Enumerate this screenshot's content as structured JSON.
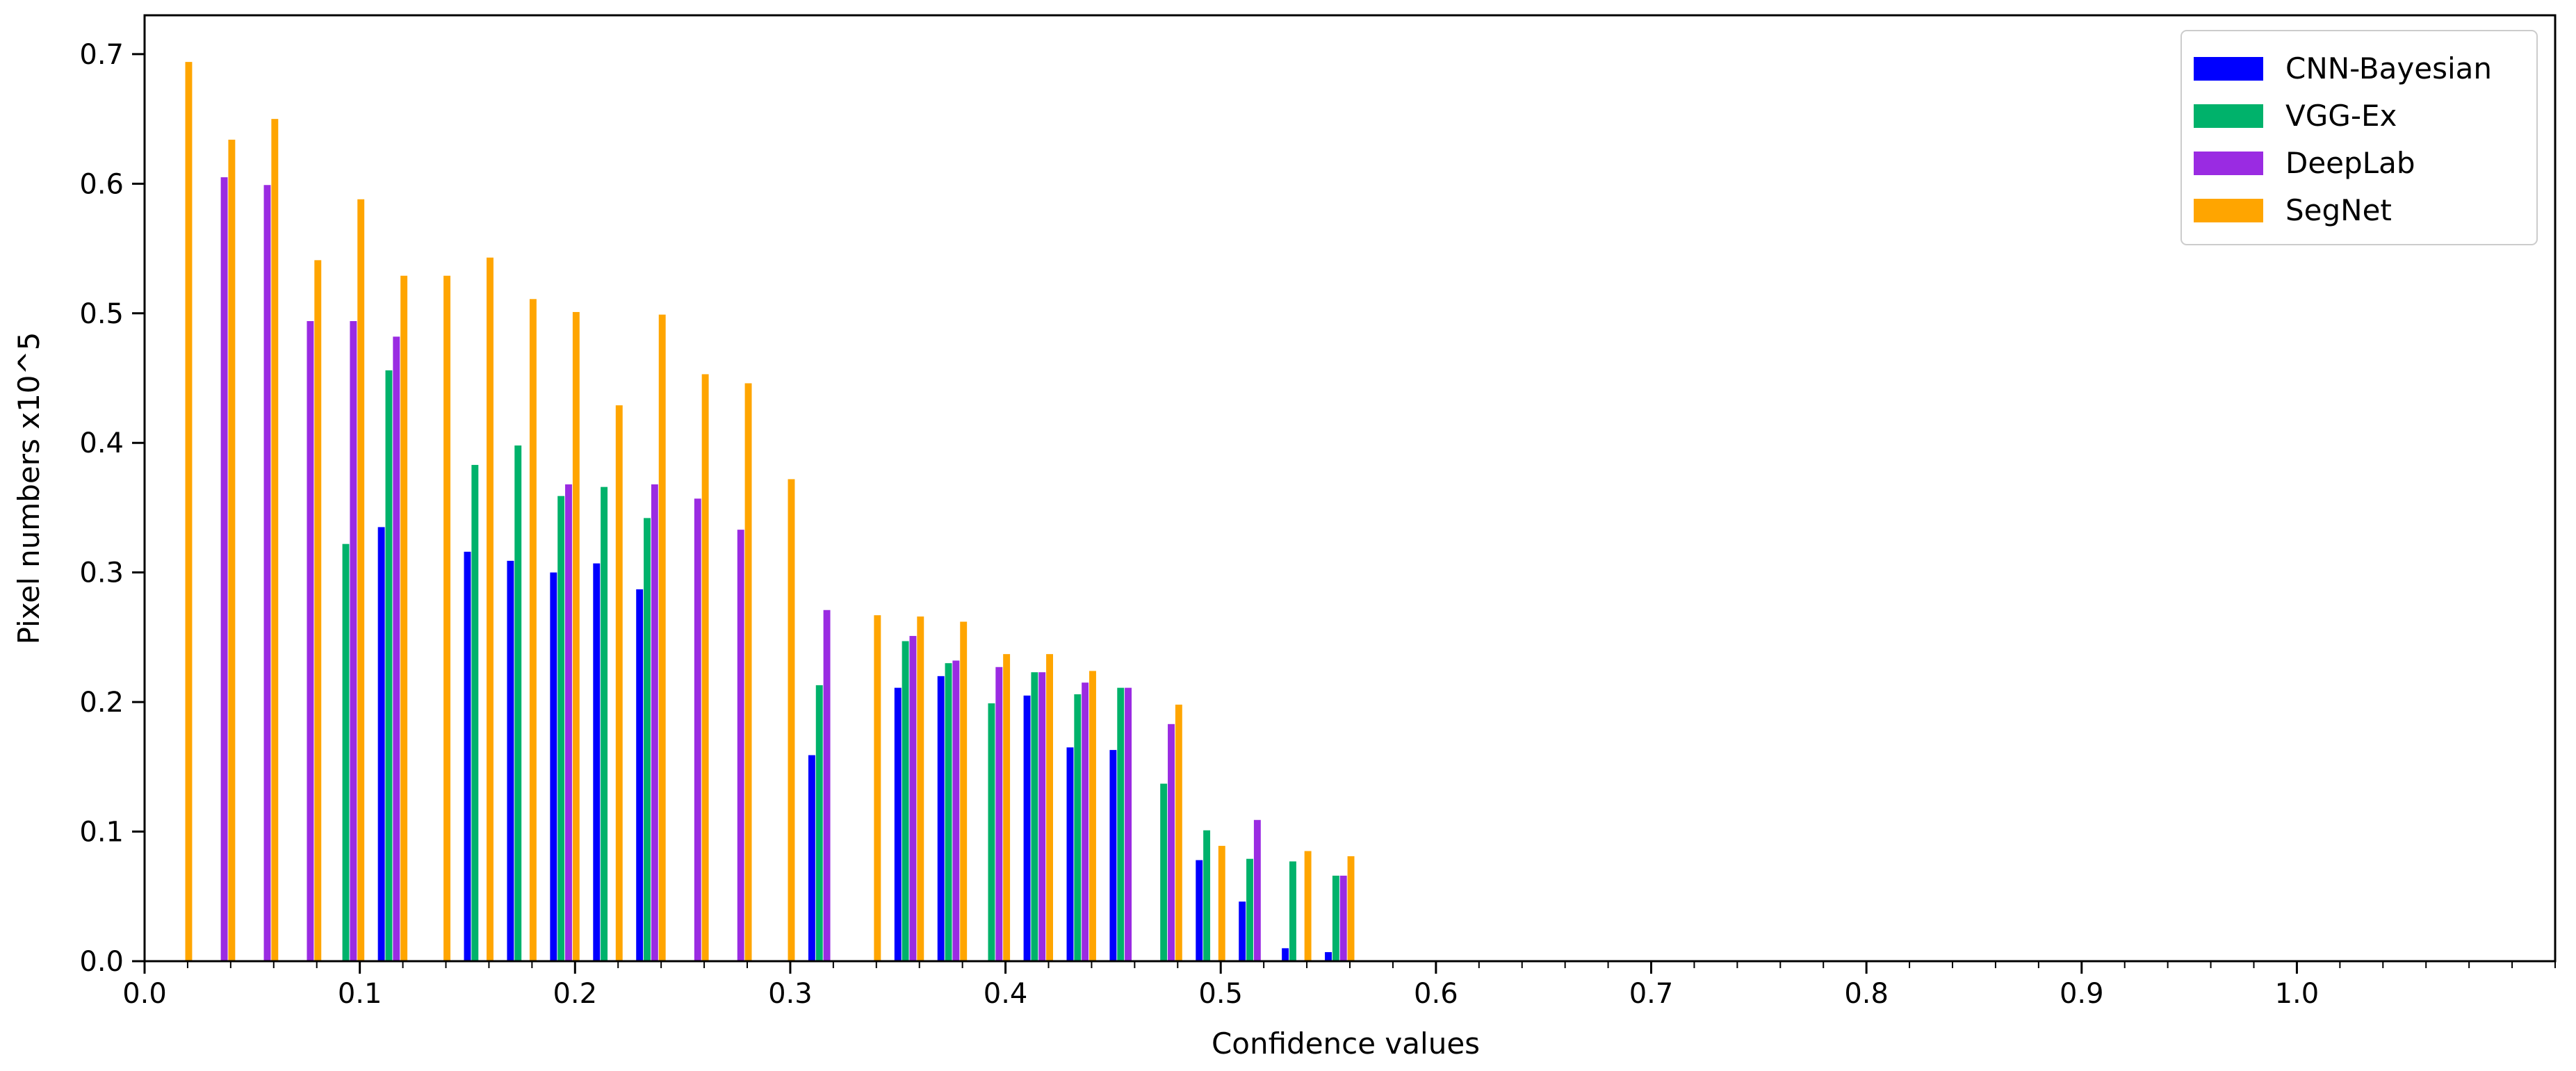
{
  "chart_data": {
    "type": "bar",
    "title": "",
    "xlabel": "Confidence values",
    "ylabel": "Pixel numbers  x10^5",
    "xlim": [
      0.0,
      1.12
    ],
    "ylim": [
      0.0,
      0.73
    ],
    "xticks": [
      0.0,
      0.1,
      0.2,
      0.3,
      0.4,
      0.5,
      0.6,
      0.7,
      0.8,
      0.9,
      1.0
    ],
    "xtick_labels": [
      "0.0",
      "0.1",
      "0.2",
      "0.3",
      "0.4",
      "0.5",
      "0.6",
      "0.7",
      "0.8",
      "0.9",
      "1.0"
    ],
    "xminor_step": 0.02,
    "yticks": [
      0.0,
      0.1,
      0.2,
      0.3,
      0.4,
      0.5,
      0.6,
      0.7
    ],
    "ytick_labels": [
      "0.0",
      "0.1",
      "0.2",
      "0.3",
      "0.4",
      "0.5",
      "0.6",
      "0.7"
    ],
    "bin_width": 0.02,
    "grid": false,
    "legend": {
      "position": "top-right"
    },
    "series": [
      {
        "name": "CNN-Bayesian",
        "color": "#0000ff",
        "offset": 0.0,
        "x": [
          0.11,
          0.15,
          0.17,
          0.19,
          0.21,
          0.23,
          0.31,
          0.35,
          0.37,
          0.41,
          0.43,
          0.45,
          0.49,
          0.51,
          0.53,
          0.55
        ],
        "values": [
          0.335,
          0.316,
          0.309,
          0.3,
          0.307,
          0.287,
          0.159,
          0.211,
          0.22,
          0.205,
          0.165,
          0.163,
          0.078,
          0.046,
          0.01,
          0.007
        ]
      },
      {
        "name": "VGG-Ex",
        "color": "#00b26b",
        "offset": 0.0035,
        "x": [
          0.09,
          0.11,
          0.15,
          0.17,
          0.19,
          0.21,
          0.23,
          0.31,
          0.35,
          0.37,
          0.39,
          0.41,
          0.43,
          0.45,
          0.47,
          0.49,
          0.51,
          0.53,
          0.55
        ],
        "values": [
          0.322,
          0.456,
          0.383,
          0.398,
          0.359,
          0.366,
          0.342,
          0.213,
          0.247,
          0.23,
          0.199,
          0.223,
          0.206,
          0.211,
          0.137,
          0.101,
          0.079,
          0.077,
          0.066
        ]
      },
      {
        "name": "DeepLab",
        "color": "#9a2be2",
        "offset": 0.007,
        "x": [
          0.03,
          0.05,
          0.07,
          0.09,
          0.11,
          0.19,
          0.23,
          0.25,
          0.27,
          0.31,
          0.35,
          0.37,
          0.39,
          0.41,
          0.43,
          0.45,
          0.47,
          0.51,
          0.55
        ],
        "values": [
          0.605,
          0.599,
          0.494,
          0.494,
          0.482,
          0.368,
          0.368,
          0.357,
          0.333,
          0.271,
          0.251,
          0.232,
          0.227,
          0.223,
          0.215,
          0.211,
          0.183,
          0.109,
          0.066
        ]
      },
      {
        "name": "SegNet",
        "color": "#ffa500",
        "offset": 0.0105,
        "x": [
          0.01,
          0.03,
          0.05,
          0.07,
          0.09,
          0.11,
          0.13,
          0.15,
          0.17,
          0.19,
          0.21,
          0.23,
          0.25,
          0.27,
          0.29,
          0.33,
          0.35,
          0.37,
          0.39,
          0.41,
          0.43,
          0.47,
          0.49,
          0.53,
          0.55
        ],
        "values": [
          0.694,
          0.634,
          0.65,
          0.541,
          0.588,
          0.529,
          0.529,
          0.543,
          0.511,
          0.501,
          0.429,
          0.499,
          0.453,
          0.446,
          0.372,
          0.267,
          0.266,
          0.262,
          0.237,
          0.237,
          0.224,
          0.198,
          0.089,
          0.085,
          0.081
        ]
      }
    ]
  }
}
